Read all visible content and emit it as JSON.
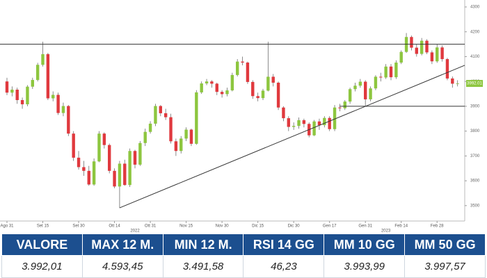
{
  "chart_data": {
    "type": "candlestick",
    "categories": [
      "Ago 31",
      null,
      null,
      null,
      null,
      null,
      null,
      "Set 15",
      null,
      null,
      null,
      null,
      null,
      null,
      "Set 30",
      null,
      null,
      null,
      null,
      null,
      null,
      "Ott 14",
      null,
      null,
      null,
      null,
      null,
      null,
      "Ott 31",
      null,
      null,
      null,
      null,
      null,
      null,
      "Nov 15",
      null,
      null,
      null,
      null,
      null,
      null,
      "Nov 30",
      null,
      null,
      null,
      null,
      null,
      null,
      "Dic 15",
      null,
      null,
      null,
      null,
      null,
      null,
      "Dic 30",
      null,
      null,
      null,
      null,
      null,
      null,
      "Gen 17",
      null,
      null,
      null,
      null,
      null,
      null,
      "Gen 31",
      null,
      null,
      null,
      null,
      null,
      null,
      "Feb 14",
      null,
      null,
      null,
      null,
      null,
      null,
      "Feb 28",
      null,
      null,
      null,
      null
    ],
    "open": [
      4000,
      3955,
      3967,
      3925,
      3908,
      3979,
      4006,
      4067,
      4110,
      3932,
      3946,
      3873,
      3901,
      3790,
      3693,
      3655,
      3640,
      3585,
      3678,
      3790,
      3744,
      3640,
      3577,
      3669,
      3583,
      3720,
      3665,
      3752,
      3797,
      3830,
      3901,
      3872,
      3856,
      3759,
      3720,
      3770,
      3806,
      3749,
      3956,
      3992,
      4000,
      3991,
      3958,
      3949,
      3964,
      4026,
      4080,
      4076,
      3998,
      3941,
      3933,
      3963,
      4019,
      3995,
      3895,
      3852,
      3817,
      3821,
      3844,
      3829,
      3783,
      3839,
      3824,
      3853,
      3808,
      3895,
      3892,
      3919,
      3969,
      3983,
      3999,
      3928,
      3972,
      4019,
      4016,
      4060,
      4017,
      4076,
      4119,
      4179,
      4136,
      4111,
      4164,
      4117,
      4081,
      4137,
      4090,
      4012,
      3991
    ],
    "high": [
      4015,
      3980,
      3975,
      3935,
      3985,
      4015,
      4075,
      4160,
      4115,
      3960,
      3955,
      3915,
      3905,
      3800,
      3720,
      3680,
      3660,
      3690,
      3800,
      3795,
      3750,
      3650,
      3680,
      3685,
      3730,
      3725,
      3760,
      3810,
      3840,
      3910,
      3905,
      3890,
      3870,
      3770,
      3780,
      3815,
      3810,
      3965,
      4000,
      4010,
      4005,
      3995,
      3965,
      3975,
      4035,
      4090,
      4100,
      4080,
      4005,
      3955,
      3970,
      4160,
      4030,
      4000,
      3900,
      3860,
      3835,
      3855,
      3850,
      3835,
      3845,
      3850,
      3860,
      3860,
      3905,
      3910,
      3925,
      3975,
      3995,
      4010,
      4005,
      3980,
      4025,
      4035,
      4070,
      4070,
      4085,
      4125,
      4195,
      4185,
      4150,
      4175,
      4170,
      4125,
      4150,
      4145,
      4095,
      4020,
      4005
    ],
    "low": [
      3945,
      3940,
      3910,
      3890,
      3900,
      3970,
      4000,
      4060,
      3925,
      3920,
      3865,
      3860,
      3780,
      3680,
      3645,
      3620,
      3580,
      3580,
      3675,
      3730,
      3630,
      3570,
      3491,
      3580,
      3575,
      3650,
      3660,
      3740,
      3790,
      3820,
      3860,
      3845,
      3750,
      3700,
      3710,
      3760,
      3740,
      3745,
      3950,
      3985,
      3975,
      3945,
      3935,
      3940,
      3960,
      4020,
      4065,
      3990,
      3930,
      3920,
      3925,
      3960,
      3980,
      3885,
      3840,
      3800,
      3805,
      3810,
      3815,
      3775,
      3780,
      3805,
      3815,
      3800,
      3800,
      3880,
      3885,
      3910,
      3960,
      3975,
      3900,
      3920,
      3965,
      4000,
      4010,
      4005,
      4010,
      4070,
      4115,
      4125,
      4100,
      4105,
      4110,
      4070,
      4075,
      4080,
      4005,
      3975,
      3980
    ],
    "close": [
      3955,
      3967,
      3925,
      3908,
      3979,
      4006,
      4067,
      4110,
      3932,
      3946,
      3873,
      3901,
      3790,
      3693,
      3655,
      3640,
      3585,
      3678,
      3790,
      3744,
      3640,
      3577,
      3669,
      3583,
      3720,
      3665,
      3752,
      3797,
      3830,
      3901,
      3872,
      3856,
      3759,
      3720,
      3770,
      3806,
      3749,
      3956,
      3992,
      4000,
      3991,
      3958,
      3949,
      3964,
      4026,
      4080,
      4076,
      3998,
      3941,
      3933,
      3963,
      4019,
      3995,
      3895,
      3852,
      3817,
      3821,
      3844,
      3829,
      3783,
      3839,
      3824,
      3853,
      3808,
      3895,
      3892,
      3919,
      3969,
      3983,
      3999,
      3928,
      3972,
      4019,
      4016,
      4060,
      4017,
      4076,
      4119,
      4179,
      4136,
      4111,
      4164,
      4117,
      4081,
      4137,
      4090,
      4012,
      3991,
      3992
    ],
    "up_color": "#8dc63f",
    "down_color": "#e0393e",
    "wick_color": "#6d6d6d",
    "ylim": [
      3438,
      4328
    ],
    "yticks": [
      3500,
      3600,
      3700,
      3800,
      3900,
      4000,
      4100,
      4200,
      4300
    ],
    "grid": false,
    "years": [
      {
        "index": 25,
        "label": "2022"
      },
      {
        "index": 74,
        "label": "2023"
      }
    ],
    "last_label": "3992.01",
    "lines": [
      {
        "x": [
          0,
          88
        ],
        "y": [
          4150,
          4150
        ]
      },
      {
        "x": [
          65,
          88
        ],
        "y": [
          3900,
          3900
        ]
      },
      {
        "x": [
          22,
          88
        ],
        "y": [
          3491,
          4065
        ]
      }
    ]
  },
  "table": {
    "header": [
      "VALORE",
      "MAX 12 M.",
      "MIN 12 M.",
      "RSI 14 GG",
      "MM 10 GG",
      "MM 50 GG"
    ],
    "row": [
      "3.992,01",
      "4.593,45",
      "3.491,58",
      "46,23",
      "3.993,99",
      "3.997,57"
    ]
  }
}
